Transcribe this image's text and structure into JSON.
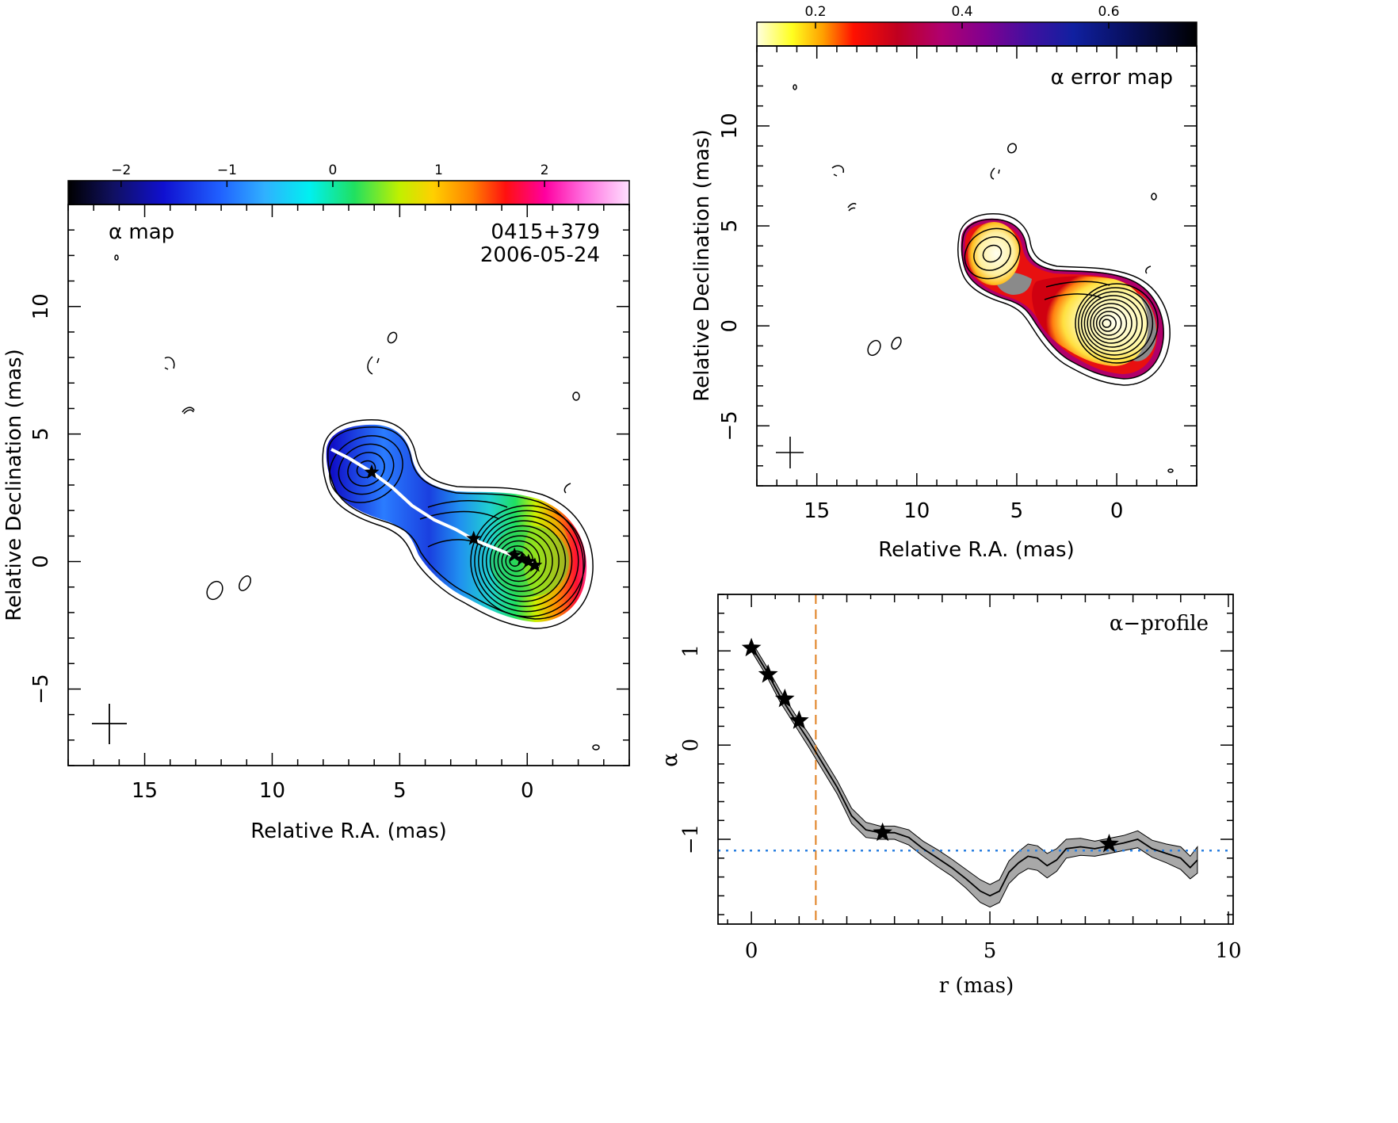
{
  "colors": {
    "ridge": "#ffffff",
    "profile_band": "#a8a8a8",
    "orange_dash": "#e08020",
    "blue_dot": "#2a7fe0"
  },
  "chart_data": [
    {
      "id": "alpha-map",
      "type": "heatmap",
      "title": "α map",
      "source": "0415+379",
      "date": "2006-05-24",
      "xlabel": "Relative R.A. (mas)",
      "ylabel": "Relative Declination (mas)",
      "xlim": [
        18,
        -4
      ],
      "ylim": [
        -8,
        14
      ],
      "xticks": [
        15,
        10,
        5,
        0
      ],
      "yticks": [
        -5,
        0,
        5,
        10
      ],
      "colorbar": {
        "min": -2.5,
        "max": 2.8,
        "ticks": [
          -2,
          -1,
          0,
          1,
          2
        ],
        "tick_labels": [
          "−2",
          "−1",
          "0",
          "1",
          "2"
        ],
        "colormap": "spectral"
      },
      "stars": [
        [
          6.1,
          3.5
        ],
        [
          2.1,
          0.9
        ],
        [
          0.5,
          0.25
        ],
        [
          0.2,
          0.1
        ],
        [
          -0.05,
          0.0
        ],
        [
          -0.3,
          -0.15
        ]
      ],
      "beam": {
        "x": 16.5,
        "y": -6.4
      }
    },
    {
      "id": "alpha-error-map",
      "type": "heatmap",
      "title": "α error map",
      "xlabel": "Relative R.A. (mas)",
      "ylabel": "Relative Declination (mas)",
      "xlim": [
        18,
        -4
      ],
      "ylim": [
        -8,
        14
      ],
      "xticks": [
        15,
        10,
        5,
        0
      ],
      "yticks": [
        -5,
        0,
        5,
        10
      ],
      "colorbar": {
        "min": 0.12,
        "max": 0.72,
        "ticks": [
          0.2,
          0.4,
          0.6
        ],
        "tick_labels": [
          "0.2",
          "0.4",
          "0.6"
        ],
        "colormap": "heat"
      },
      "beam": {
        "x": 16.5,
        "y": -6.4
      }
    },
    {
      "id": "alpha-profile",
      "type": "line",
      "title": "α−profile",
      "xlabel": "r (mas)",
      "ylabel": "α",
      "xlim": [
        -0.7,
        10.1
      ],
      "ylim": [
        -1.9,
        1.6
      ],
      "xticks": [
        0,
        5,
        10
      ],
      "yticks": [
        -1,
        0,
        1
      ],
      "ytick_labels": [
        "−1",
        "0",
        "1"
      ],
      "series": [
        {
          "x": [
            0,
            0.3,
            0.6,
            0.9,
            1.2,
            1.5,
            1.8,
            2.1,
            2.4,
            2.7,
            3.0,
            3.3,
            3.6,
            3.9,
            4.2,
            4.5,
            4.8,
            5.0,
            5.2,
            5.4,
            5.6,
            5.8,
            6.0,
            6.2,
            6.4,
            6.6,
            6.9,
            7.2,
            7.5,
            7.8,
            8.1,
            8.4,
            8.7,
            9.0,
            9.2,
            9.35
          ],
          "y": [
            1.05,
            0.8,
            0.52,
            0.28,
            0.05,
            -0.2,
            -0.45,
            -0.75,
            -0.9,
            -0.93,
            -0.93,
            -0.98,
            -1.1,
            -1.2,
            -1.3,
            -1.42,
            -1.55,
            -1.6,
            -1.55,
            -1.35,
            -1.25,
            -1.18,
            -1.2,
            -1.28,
            -1.22,
            -1.1,
            -1.08,
            -1.1,
            -1.07,
            -1.04,
            -1.0,
            -1.1,
            -1.15,
            -1.2,
            -1.3,
            -1.22
          ],
          "err": [
            0.05,
            0.05,
            0.06,
            0.06,
            0.07,
            0.07,
            0.07,
            0.08,
            0.08,
            0.07,
            0.07,
            0.08,
            0.08,
            0.09,
            0.09,
            0.1,
            0.12,
            0.12,
            0.12,
            0.12,
            0.12,
            0.13,
            0.13,
            0.13,
            0.12,
            0.1,
            0.09,
            0.08,
            0.08,
            0.08,
            0.09,
            0.09,
            0.1,
            0.12,
            0.12,
            0.14
          ]
        }
      ],
      "stars": [
        [
          0.0,
          1.03
        ],
        [
          0.35,
          0.75
        ],
        [
          0.7,
          0.49
        ],
        [
          1.0,
          0.26
        ],
        [
          2.75,
          -0.93
        ],
        [
          7.5,
          -1.05
        ]
      ],
      "vline": 1.35,
      "hline": -1.12
    }
  ]
}
